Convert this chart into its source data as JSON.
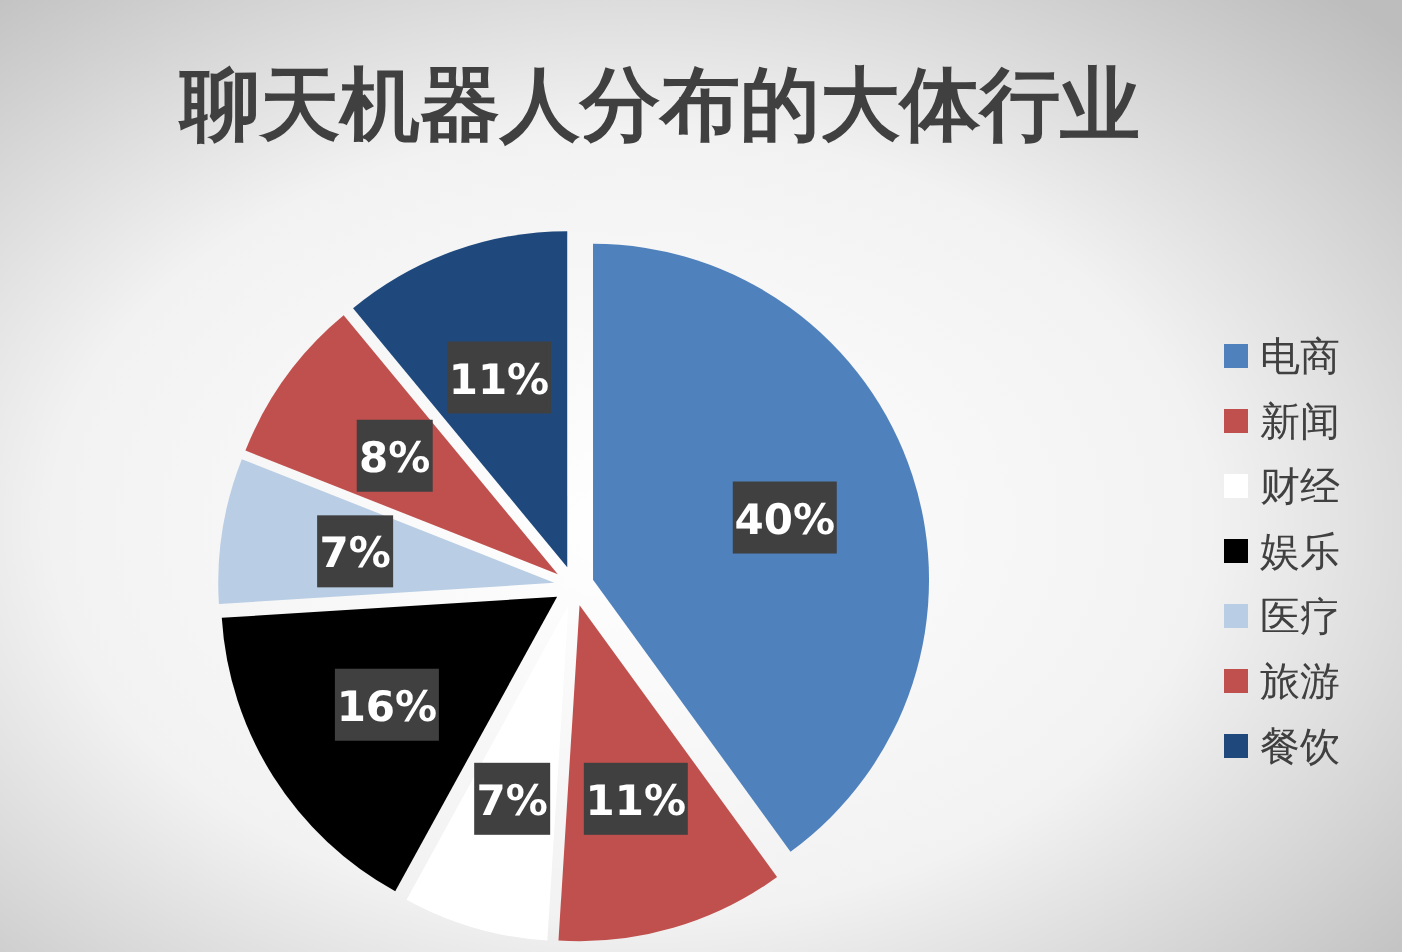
{
  "chart_data": {
    "type": "pie",
    "title": "聊天机器人分布的大体行业",
    "categories": [
      "电商",
      "新闻",
      "财经",
      "娱乐",
      "医疗",
      "旅游",
      "餐饮"
    ],
    "values": [
      40,
      11,
      7,
      16,
      7,
      8,
      11
    ],
    "colors": [
      "#4f81bd",
      "#c0504d",
      "#ffffff",
      "#000000",
      "#b9cde5",
      "#c0504d",
      "#1f497d"
    ],
    "value_labels": [
      "40%",
      "11%",
      "7%",
      "16%",
      "7%",
      "8%",
      "11%"
    ],
    "legend": "right"
  }
}
